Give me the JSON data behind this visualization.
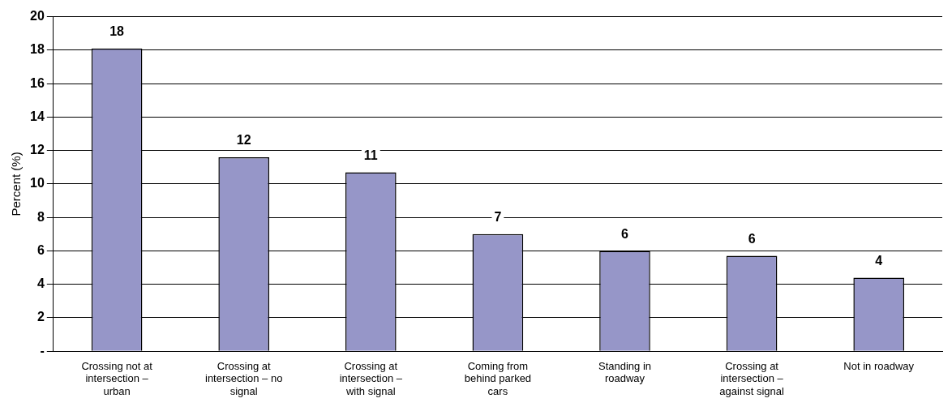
{
  "chart_data": {
    "type": "bar",
    "ylabel": "Percent (%)",
    "categories": [
      "Crossing not at intersection – urban",
      "Crossing at intersection – no signal",
      "Crossing at intersection – with signal",
      "Coming from behind parked cars",
      "Standing in roadway",
      "Crossing at intersection – against signal",
      "Not in roadway"
    ],
    "values": [
      18.1,
      11.6,
      10.7,
      7.0,
      6.0,
      5.7,
      4.4
    ],
    "value_labels": [
      "18",
      "12",
      "11",
      "7",
      "6",
      "6",
      "4"
    ],
    "color": "#9696c8",
    "ylim": [
      0,
      20
    ],
    "yticks": [
      {
        "value": 0,
        "label": "-"
      },
      2,
      4,
      6,
      8,
      10,
      12,
      14,
      16,
      18,
      20
    ],
    "grid": "y",
    "legend": false
  }
}
